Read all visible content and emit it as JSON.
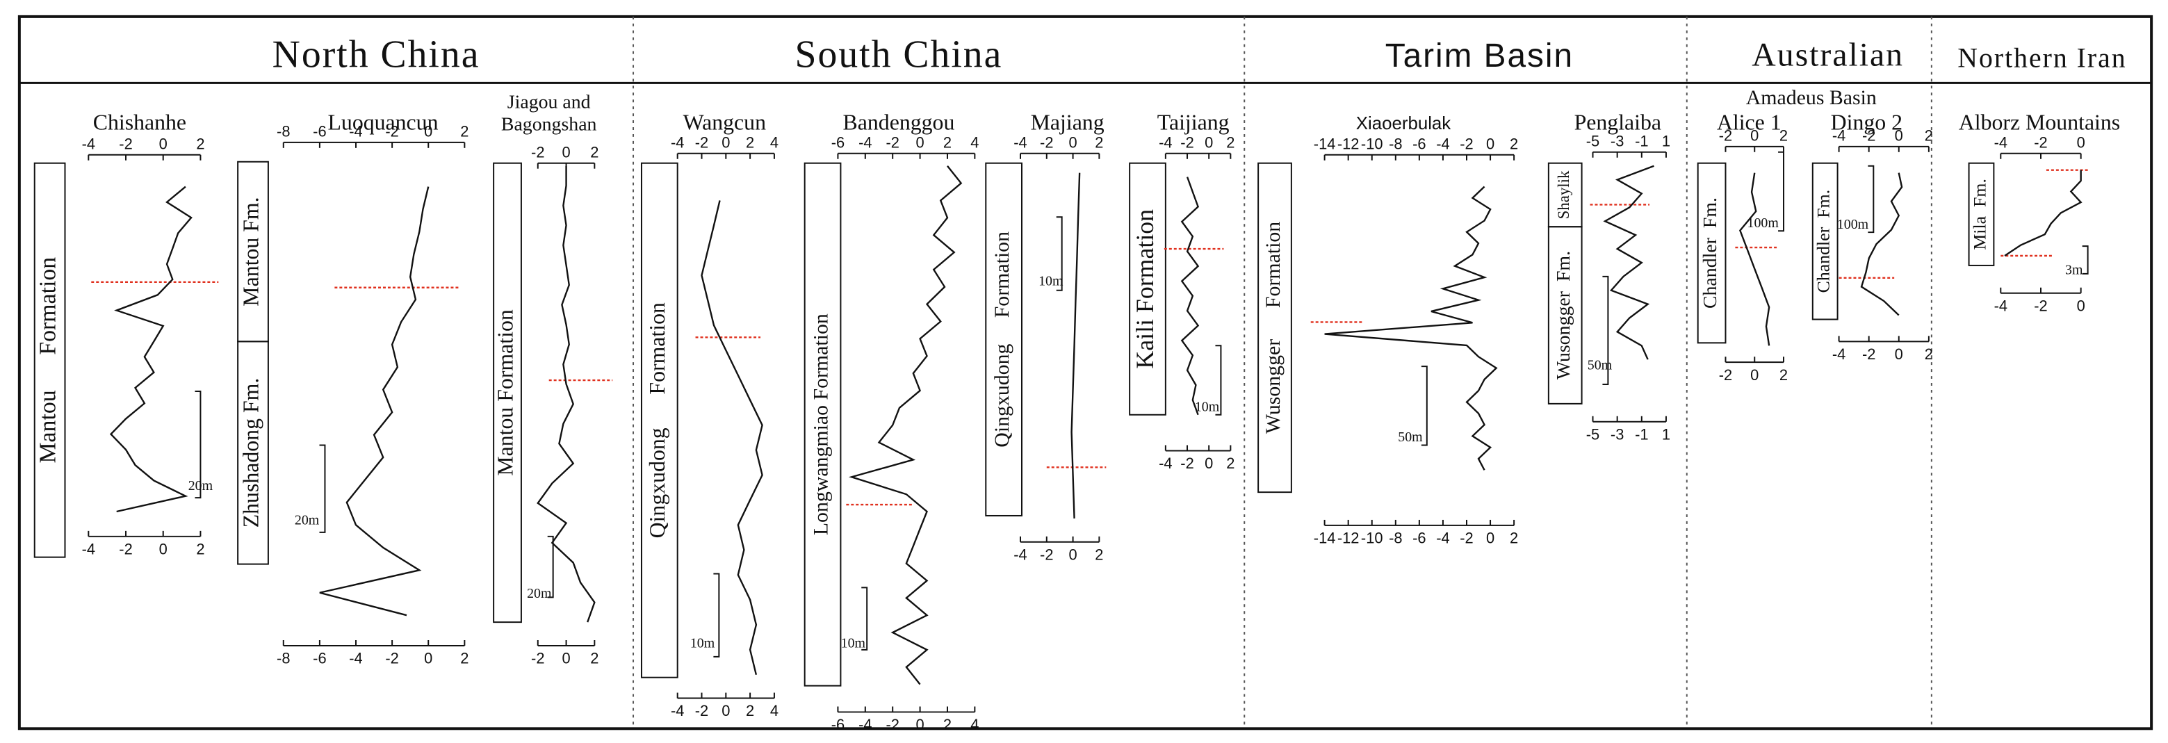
{
  "header": {
    "regions": [
      {
        "title": "North China"
      },
      {
        "title": "South China"
      },
      {
        "title": "Tarim Basin"
      },
      {
        "title": "Australian",
        "subtitle": "Amadeus Basin"
      },
      {
        "title": "Northern Iran"
      }
    ]
  },
  "sections": [
    {
      "name": "Chishanhe",
      "ticks": [
        -4,
        -2,
        0,
        2
      ],
      "formations": [
        "Mantou      Formation"
      ],
      "scale": "20m",
      "values": [
        1.2,
        0.2,
        1.5,
        0.8,
        0.5,
        0.2,
        0.5,
        -0.3,
        -2.5,
        0,
        -0.5,
        -1,
        -0.5,
        -1.5,
        -1,
        -2,
        -2.8,
        -2,
        -1.5,
        -0.5,
        1.2,
        -2.5
      ]
    },
    {
      "name": "Luoquancun",
      "ticks": [
        -8,
        -6,
        -4,
        -2,
        0,
        2
      ],
      "formations": [
        "Mantou Fm.",
        "Zhushadong Fm."
      ],
      "scale": "20m",
      "values": [
        0,
        -0.3,
        -0.5,
        -0.8,
        -1,
        -0.7,
        -1.5,
        -2,
        -1.7,
        -2.5,
        -2,
        -3,
        -2.5,
        -3.5,
        -4.5,
        -4,
        -2.5,
        -0.5,
        -6,
        -1.2
      ]
    },
    {
      "name": [
        "Jiagou and",
        "Bagongshan"
      ],
      "ticks": [
        -2,
        0,
        2
      ],
      "formations": [
        "Mantou Formation"
      ],
      "scale": "20m",
      "values": [
        0,
        0,
        -0.2,
        0,
        -0.2,
        0,
        0.2,
        -0.3,
        0,
        0.2,
        -0.2,
        0,
        0.5,
        -0.2,
        -0.5,
        0.5,
        -1,
        -2,
        0,
        -1,
        0.5,
        1,
        2,
        1.5
      ]
    },
    {
      "name": "Wangcun",
      "ticks": [
        -4,
        -2,
        0,
        2,
        4
      ],
      "formations": [
        "Qingxudong      Formation"
      ],
      "scale": "10m",
      "values": [
        -0.5,
        -1,
        -1.5,
        -2,
        -1.5,
        -1,
        0,
        1,
        2,
        3,
        2.5,
        3,
        2,
        1,
        1.5,
        1,
        2,
        2.5,
        2,
        2.5
      ]
    },
    {
      "name": "Bandenggou",
      "ticks": [
        -6,
        -4,
        -2,
        0,
        2,
        4
      ],
      "formations": [
        "Longwangmiao Formation"
      ],
      "scale": "10m",
      "values": [
        2,
        3,
        1.5,
        2,
        1,
        2.5,
        1,
        1.8,
        0.5,
        1.5,
        0,
        0.5,
        -0.5,
        0,
        -1.5,
        -2,
        -3,
        -0.5,
        -5,
        -1,
        0.5,
        0,
        -0.5,
        -1,
        0.5,
        -1,
        0.5,
        -2,
        0.5,
        -1,
        0
      ]
    },
    {
      "name": "Majiang",
      "ticks": [
        -4,
        -2,
        0,
        2
      ],
      "formations": [
        "Qingxudong     Formation"
      ],
      "scale": "10m",
      "values": [
        0.5,
        0.4,
        0.3,
        0.2,
        0.1,
        0,
        -0.1,
        0,
        0.1
      ]
    },
    {
      "name": "Taijiang",
      "ticks": [
        -4,
        -2,
        0,
        2
      ],
      "formations": [
        "Kaili Formation"
      ],
      "scale": "10m",
      "values": [
        -2,
        -1.5,
        -1,
        -2.5,
        -1.5,
        -2,
        -1,
        -2.5,
        -1.5,
        -2,
        -1,
        -2.5,
        -1.5,
        -2,
        -1.2,
        -1.5,
        -1
      ]
    },
    {
      "name": "Xiaoerbulak",
      "ticks": [
        -14,
        -12,
        -10,
        -8,
        -6,
        -4,
        -2,
        0,
        2
      ],
      "formations": [
        "Wusongger      Formation"
      ],
      "scale": "50m",
      "values": [
        -0.5,
        -1.5,
        0,
        -0.5,
        -2,
        -1,
        -1.5,
        -3,
        -0.5,
        -4,
        -1,
        -5,
        -1.5,
        -14,
        -2,
        -1,
        0.5,
        -0.5,
        -1,
        -2,
        -1,
        -0.5,
        -1.5,
        0,
        -1,
        -0.5
      ]
    },
    {
      "name": "Penglaiba",
      "ticks": [
        -5,
        -3,
        -1,
        1
      ],
      "formations": [
        "Shaylik",
        "Wusongger  Fm."
      ],
      "scale": "50m",
      "values": [
        0,
        -3,
        -1,
        -2,
        -4,
        -1.5,
        -3,
        -1,
        -2.5,
        -3.5,
        -0.5,
        -2,
        -3,
        -1,
        -0.5
      ]
    },
    {
      "name": "Alice 1",
      "ticks": [
        -2,
        0,
        2
      ],
      "formations": [
        "Chandler  Fm."
      ],
      "scale": "100m",
      "values": [
        0,
        -0.2,
        0.1,
        -1,
        -0.5,
        0,
        0.5,
        1,
        0.8,
        1
      ]
    },
    {
      "name": "Dingo 2",
      "ticks": [
        -4,
        -2,
        0,
        2
      ],
      "formations": [
        "Chandler  Fm."
      ],
      "scale": "100m",
      "values": [
        0,
        0.2,
        -0.5,
        0,
        -0.5,
        -1.5,
        -2,
        -2.2,
        -2.5,
        -1,
        0
      ]
    },
    {
      "name": "Alborz Mountains",
      "ticks": [
        -4,
        -2,
        0
      ],
      "formations": [
        "Mila  Fm."
      ],
      "scale": "3m",
      "values": [
        0,
        0,
        -0.5,
        0,
        -1,
        -1.5,
        -1.8,
        -3,
        -3.8
      ]
    }
  ]
}
